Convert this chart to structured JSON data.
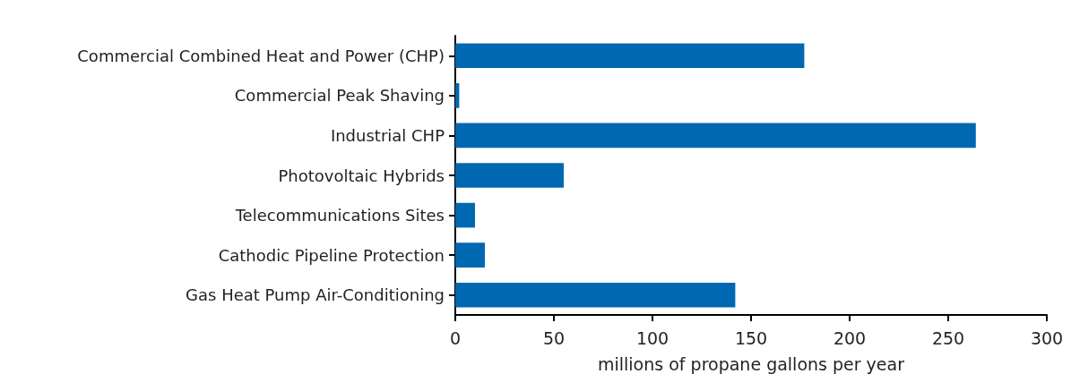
{
  "chart_data": {
    "type": "bar",
    "orientation": "horizontal",
    "xlabel": "millions of propane gallons per year",
    "categories": [
      "Commercial Combined Heat and Power (CHP)",
      "Commercial Peak Shaving",
      "Industrial CHP",
      "Photovoltaic Hybrids",
      "Telecommunications Sites",
      "Cathodic Pipeline Protection",
      "Gas Heat Pump Air-Conditioning"
    ],
    "values": [
      177,
      2,
      264,
      55,
      10,
      15,
      142
    ],
    "color": "#0068b0",
    "xlim": [
      0,
      300
    ],
    "xticks": [
      0,
      50,
      100,
      150,
      200,
      250,
      300
    ]
  }
}
